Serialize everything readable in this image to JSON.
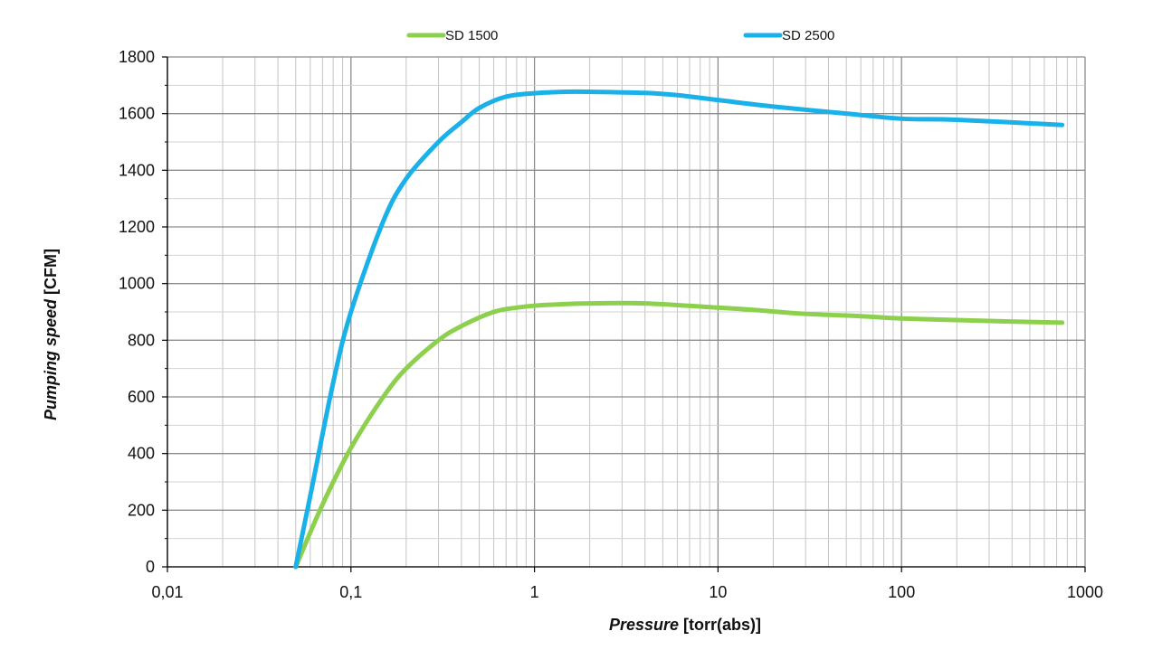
{
  "chart_data": {
    "type": "line",
    "xscale": "log",
    "xlim": [
      0.01,
      1000
    ],
    "ylim": [
      0,
      1800
    ],
    "grid": true,
    "legend_position": "top",
    "xlabel_emphasis": "Pressure",
    "xlabel_rest": " [torr(abs)]",
    "ylabel_emphasis": "Pumping speed",
    "ylabel_rest": " [CFM]",
    "x_ticks": [
      0.01,
      0.1,
      1,
      10,
      100,
      1000
    ],
    "x_tick_labels": [
      "0,01",
      "0,1",
      "1",
      "10",
      "100",
      "1000"
    ],
    "y_ticks": [
      0,
      200,
      400,
      600,
      800,
      1000,
      1200,
      1400,
      1600,
      1800
    ],
    "y_tick_labels": [
      "0",
      "200",
      "400",
      "600",
      "800",
      "1000",
      "1200",
      "1400",
      "1600",
      "1800"
    ],
    "series": [
      {
        "name": "SD 1500",
        "color": "#8cd04e",
        "points": [
          [
            0.05,
            0
          ],
          [
            0.07,
            220
          ],
          [
            0.1,
            420
          ],
          [
            0.15,
            600
          ],
          [
            0.2,
            700
          ],
          [
            0.3,
            800
          ],
          [
            0.4,
            850
          ],
          [
            0.6,
            900
          ],
          [
            0.8,
            915
          ],
          [
            1,
            922
          ],
          [
            1.5,
            928
          ],
          [
            2,
            930
          ],
          [
            4,
            930
          ],
          [
            10,
            915
          ],
          [
            15,
            908
          ],
          [
            30,
            893
          ],
          [
            60,
            885
          ],
          [
            100,
            877
          ],
          [
            300,
            868
          ],
          [
            750,
            862
          ]
        ]
      },
      {
        "name": "SD 2500",
        "color": "#1ab0e8",
        "points": [
          [
            0.05,
            0
          ],
          [
            0.06,
            250
          ],
          [
            0.08,
            650
          ],
          [
            0.1,
            900
          ],
          [
            0.15,
            1220
          ],
          [
            0.2,
            1370
          ],
          [
            0.3,
            1500
          ],
          [
            0.4,
            1570
          ],
          [
            0.5,
            1620
          ],
          [
            0.7,
            1660
          ],
          [
            1,
            1672
          ],
          [
            1.5,
            1677
          ],
          [
            2,
            1677
          ],
          [
            4,
            1673
          ],
          [
            6,
            1665
          ],
          [
            10,
            1648
          ],
          [
            20,
            1625
          ],
          [
            50,
            1600
          ],
          [
            100,
            1582
          ],
          [
            200,
            1578
          ],
          [
            750,
            1560
          ]
        ]
      }
    ]
  }
}
